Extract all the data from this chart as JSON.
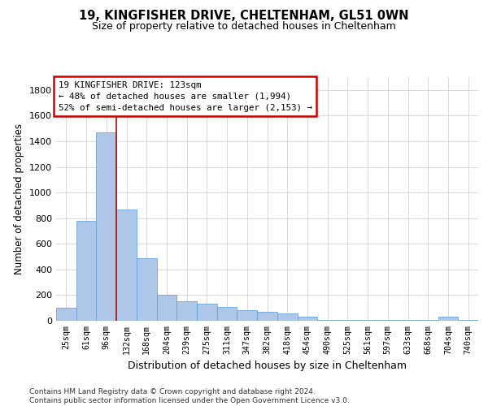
{
  "title1": "19, KINGFISHER DRIVE, CHELTENHAM, GL51 0WN",
  "title2": "Size of property relative to detached houses in Cheltenham",
  "xlabel": "Distribution of detached houses by size in Cheltenham",
  "ylabel": "Number of detached properties",
  "footer": "Contains HM Land Registry data © Crown copyright and database right 2024.\nContains public sector information licensed under the Open Government Licence v3.0.",
  "categories": [
    "25sqm",
    "61sqm",
    "96sqm",
    "132sqm",
    "168sqm",
    "204sqm",
    "239sqm",
    "275sqm",
    "311sqm",
    "347sqm",
    "382sqm",
    "418sqm",
    "454sqm",
    "490sqm",
    "525sqm",
    "561sqm",
    "597sqm",
    "633sqm",
    "668sqm",
    "704sqm",
    "740sqm"
  ],
  "values": [
    100,
    780,
    1470,
    870,
    490,
    200,
    150,
    130,
    110,
    80,
    70,
    55,
    30,
    5,
    5,
    5,
    5,
    5,
    5,
    30,
    5
  ],
  "bar_color": "#aec6e8",
  "bar_edge_color": "#5b9bd5",
  "property_line_x": 2.5,
  "property_label": "19 KINGFISHER DRIVE: 123sqm",
  "annotation_line1": "← 48% of detached houses are smaller (1,994)",
  "annotation_line2": "52% of semi-detached houses are larger (2,153) →",
  "annotation_box_color": "#ffffff",
  "annotation_box_edge": "#cc0000",
  "property_line_color": "#cc0000",
  "ylim": [
    0,
    1900
  ],
  "yticks": [
    0,
    200,
    400,
    600,
    800,
    1000,
    1200,
    1400,
    1600,
    1800
  ],
  "background_color": "#ffffff",
  "grid_color": "#cccccc"
}
